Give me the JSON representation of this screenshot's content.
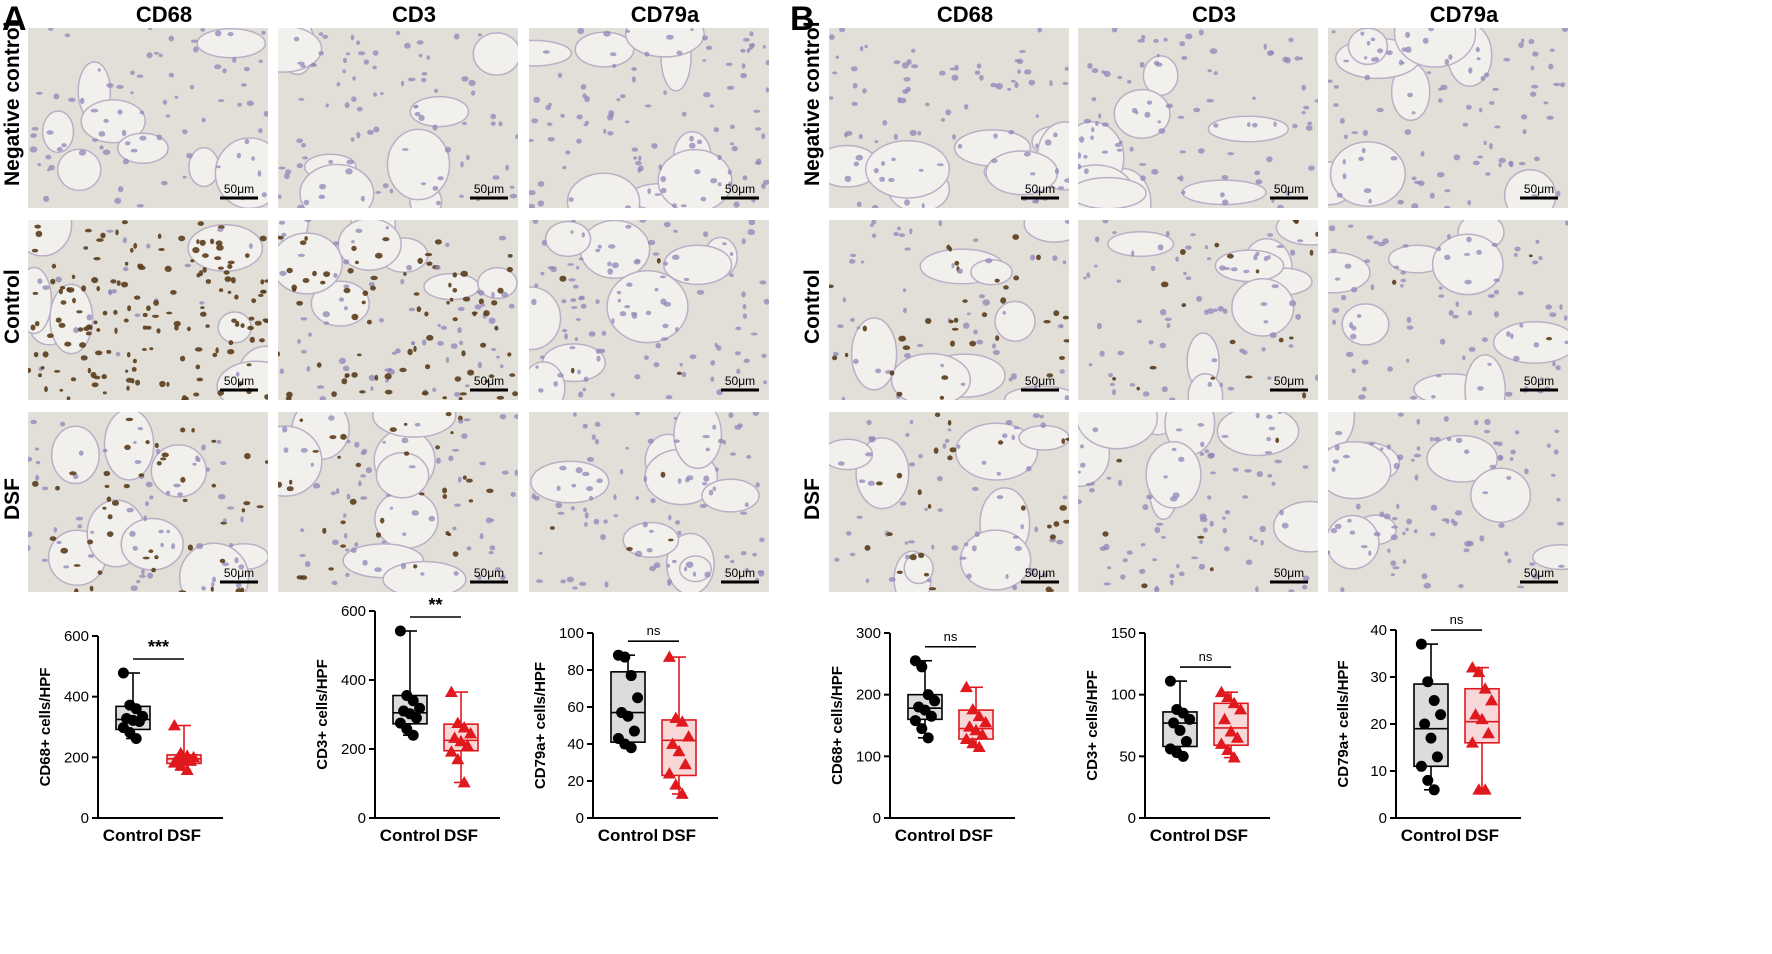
{
  "panels": [
    {
      "letter": "A",
      "columns": [
        "CD68",
        "CD3",
        "CD79a"
      ],
      "rows": [
        "Negative control",
        "Control",
        "DSF"
      ],
      "scale_bar": "50μm",
      "staining": [
        [
          0,
          0,
          0
        ],
        [
          0.9,
          0.55,
          0.05
        ],
        [
          0.45,
          0.35,
          0.05
        ]
      ],
      "background": [
        [
          0.25,
          0.3,
          0.4
        ],
        [
          0.9,
          0.7,
          0.45
        ],
        [
          0.45,
          0.4,
          0.35
        ]
      ]
    },
    {
      "letter": "B",
      "columns": [
        "CD68",
        "CD3",
        "CD79a"
      ],
      "rows": [
        "Negative control",
        "Control",
        "DSF"
      ],
      "scale_bar": "50μm",
      "staining": [
        [
          0,
          0,
          0
        ],
        [
          0.35,
          0.2,
          0.02
        ],
        [
          0.25,
          0.12,
          0.01
        ]
      ],
      "background": [
        [
          0.3,
          0.3,
          0.35
        ],
        [
          0.3,
          0.3,
          0.3
        ],
        [
          0.3,
          0.3,
          0.3
        ]
      ]
    }
  ],
  "colors": {
    "control": "#000000",
    "dsf": "#e0191f",
    "control_box": "#dcdcdc",
    "dsf_box": "#f7d7d7",
    "tissue_bg": "#e2ded8",
    "hematoxylin": "#8f85b8",
    "dab": "#5a3d1c"
  },
  "chart_data": [
    {
      "type": "box",
      "panel": "A",
      "ylabel": "CD68+ cells/HPF",
      "yticks": [
        0,
        200,
        400,
        600
      ],
      "ylim": [
        0,
        600
      ],
      "categories": [
        "Control",
        "DSF"
      ],
      "significance": "***",
      "series": [
        {
          "name": "Control",
          "box": {
            "min": 262,
            "q1": 292,
            "median": 325,
            "q3": 368,
            "max": 478
          },
          "points": [
            478,
            372,
            360,
            335,
            328,
            322,
            318,
            298,
            282,
            262
          ]
        },
        {
          "name": "DSF",
          "box": {
            "min": 158,
            "q1": 180,
            "median": 195,
            "q3": 208,
            "max": 305
          },
          "points": [
            305,
            213,
            205,
            200,
            196,
            192,
            188,
            182,
            172,
            158
          ]
        }
      ]
    },
    {
      "type": "box",
      "panel": "A",
      "ylabel": "CD3+ cells/HPF",
      "yticks": [
        0,
        200,
        400,
        600
      ],
      "ylim": [
        0,
        600
      ],
      "categories": [
        "Control",
        "DSF"
      ],
      "significance": "**",
      "series": [
        {
          "name": "Control",
          "box": {
            "min": 240,
            "q1": 273,
            "median": 305,
            "q3": 355,
            "max": 542
          },
          "points": [
            542,
            355,
            340,
            318,
            310,
            302,
            290,
            275,
            258,
            240
          ]
        },
        {
          "name": "DSF",
          "box": {
            "min": 103,
            "q1": 195,
            "median": 225,
            "q3": 272,
            "max": 365
          },
          "points": [
            365,
            275,
            262,
            245,
            232,
            222,
            210,
            192,
            170,
            103
          ]
        }
      ]
    },
    {
      "type": "box",
      "panel": "A",
      "ylabel": "CD79a+ cells/HPF",
      "yticks": [
        0,
        20,
        40,
        60,
        80,
        100
      ],
      "ylim": [
        0,
        100
      ],
      "categories": [
        "Control",
        "DSF"
      ],
      "significance": "ns",
      "series": [
        {
          "name": "Control",
          "box": {
            "min": 38,
            "q1": 41,
            "median": 57,
            "q3": 79,
            "max": 88
          },
          "points": [
            88,
            87,
            77,
            65,
            57,
            55,
            47,
            43,
            40,
            38
          ]
        },
        {
          "name": "DSF",
          "box": {
            "min": 13,
            "q1": 23,
            "median": 42,
            "q3": 53,
            "max": 87
          },
          "points": [
            87,
            54,
            52,
            44,
            40,
            36,
            29,
            24,
            18,
            13
          ]
        }
      ]
    },
    {
      "type": "box",
      "panel": "B",
      "ylabel": "CD68+ cells/HPF",
      "yticks": [
        0,
        100,
        200,
        300
      ],
      "ylim": [
        0,
        300
      ],
      "categories": [
        "Control",
        "DSF"
      ],
      "significance": "ns",
      "series": [
        {
          "name": "Control",
          "box": {
            "min": 130,
            "q1": 160,
            "median": 178,
            "q3": 200,
            "max": 255
          },
          "points": [
            255,
            245,
            200,
            190,
            180,
            175,
            165,
            158,
            145,
            130
          ]
        },
        {
          "name": "DSF",
          "box": {
            "min": 115,
            "q1": 128,
            "median": 145,
            "q3": 175,
            "max": 212
          },
          "points": [
            212,
            176,
            165,
            155,
            148,
            142,
            135,
            128,
            121,
            115
          ]
        }
      ]
    },
    {
      "type": "box",
      "panel": "B",
      "ylabel": "CD3+ cells/HPF",
      "yticks": [
        0,
        50,
        100,
        150
      ],
      "ylim": [
        0,
        150
      ],
      "categories": [
        "Control",
        "DSF"
      ],
      "significance": "ns",
      "series": [
        {
          "name": "Control",
          "box": {
            "min": 50,
            "q1": 58,
            "median": 77,
            "q3": 86,
            "max": 111
          },
          "points": [
            111,
            88,
            85,
            80,
            77,
            71,
            62,
            56,
            53,
            50
          ]
        },
        {
          "name": "DSF",
          "box": {
            "min": 49,
            "q1": 59,
            "median": 73,
            "q3": 93,
            "max": 102
          },
          "points": [
            102,
            98,
            93,
            88,
            80,
            70,
            65,
            60,
            55,
            49
          ]
        }
      ]
    },
    {
      "type": "box",
      "panel": "B",
      "ylabel": "CD79a+ cells/HPF",
      "yticks": [
        0,
        10,
        20,
        30,
        40
      ],
      "ylim": [
        0,
        40
      ],
      "categories": [
        "Control",
        "DSF"
      ],
      "significance": "ns",
      "series": [
        {
          "name": "Control",
          "box": {
            "min": 6,
            "q1": 11,
            "median": 19,
            "q3": 28.5,
            "max": 37
          },
          "points": [
            37,
            29,
            25,
            22,
            20,
            17,
            13,
            11,
            8,
            6
          ]
        },
        {
          "name": "DSF",
          "box": {
            "min": 6,
            "q1": 16,
            "median": 20.5,
            "q3": 27.5,
            "max": 32
          },
          "points": [
            32,
            31,
            27.5,
            25,
            22,
            21,
            18,
            16,
            6,
            6
          ]
        }
      ]
    }
  ]
}
